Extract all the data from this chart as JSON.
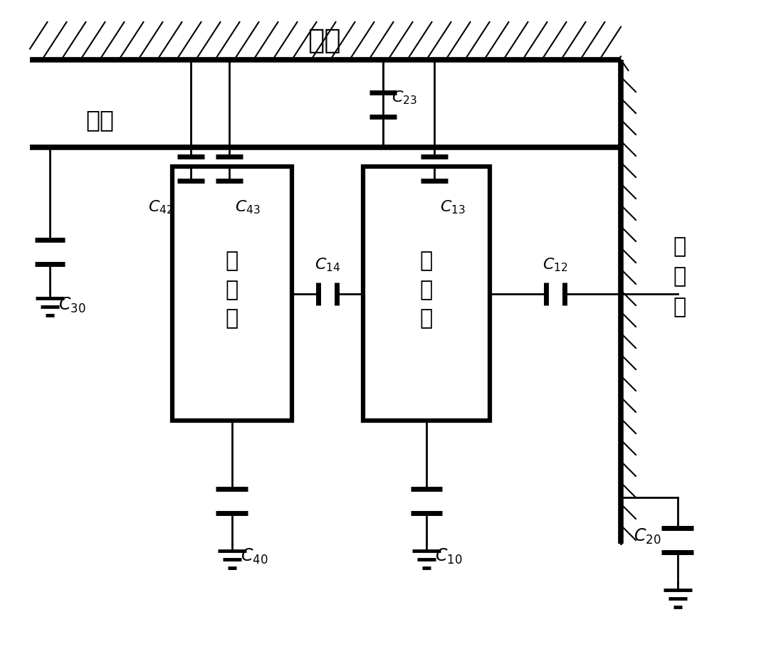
{
  "title_yoke": "铁轭",
  "label_core": "铁\n心\n柱",
  "label_clamp": "夹件",
  "label_outer": "外\n绕\n组",
  "label_inner": "内\n绕\n组",
  "bg_color": "#ffffff",
  "lw": 2.0,
  "tlw": 5.5,
  "clw": 5.0
}
